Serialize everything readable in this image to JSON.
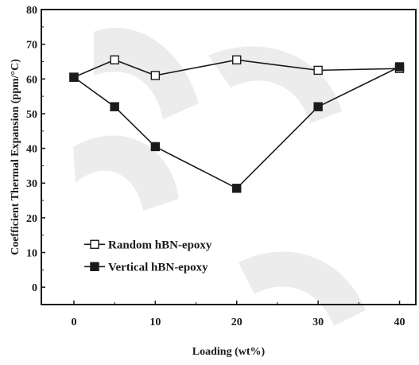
{
  "chart_data": {
    "type": "line",
    "title": "",
    "xlabel": "Loading (wt%)",
    "ylabel": "Coefficient Thermal Expansion (ppm/°C)",
    "xlim": [
      -4,
      42
    ],
    "ylim": [
      -5,
      80
    ],
    "xticks": [
      0,
      10,
      20,
      30,
      40
    ],
    "xtick_labels": [
      "0",
      "10",
      "20",
      "30",
      "40"
    ],
    "yticks": [
      0,
      10,
      20,
      30,
      40,
      50,
      60,
      70,
      80
    ],
    "ytick_labels": [
      "0",
      "10",
      "20",
      "30",
      "40",
      "50",
      "60",
      "70",
      "80"
    ],
    "grid": false,
    "legend_position": "lower-left",
    "series": [
      {
        "name": "Random hBN-epoxy",
        "marker": "open-square",
        "line_style": "solid",
        "color": "#1a1a1a",
        "x": [
          0,
          5,
          10,
          20,
          30,
          40
        ],
        "y": [
          60.5,
          65.5,
          61,
          65.5,
          62.5,
          63
        ]
      },
      {
        "name": "Vertical hBN-epoxy",
        "marker": "filled-square",
        "line_style": "solid",
        "color": "#1a1a1a",
        "x": [
          0,
          5,
          10,
          20,
          30,
          40
        ],
        "y": [
          60.5,
          52,
          40.5,
          28.5,
          52,
          63.5
        ]
      }
    ]
  }
}
